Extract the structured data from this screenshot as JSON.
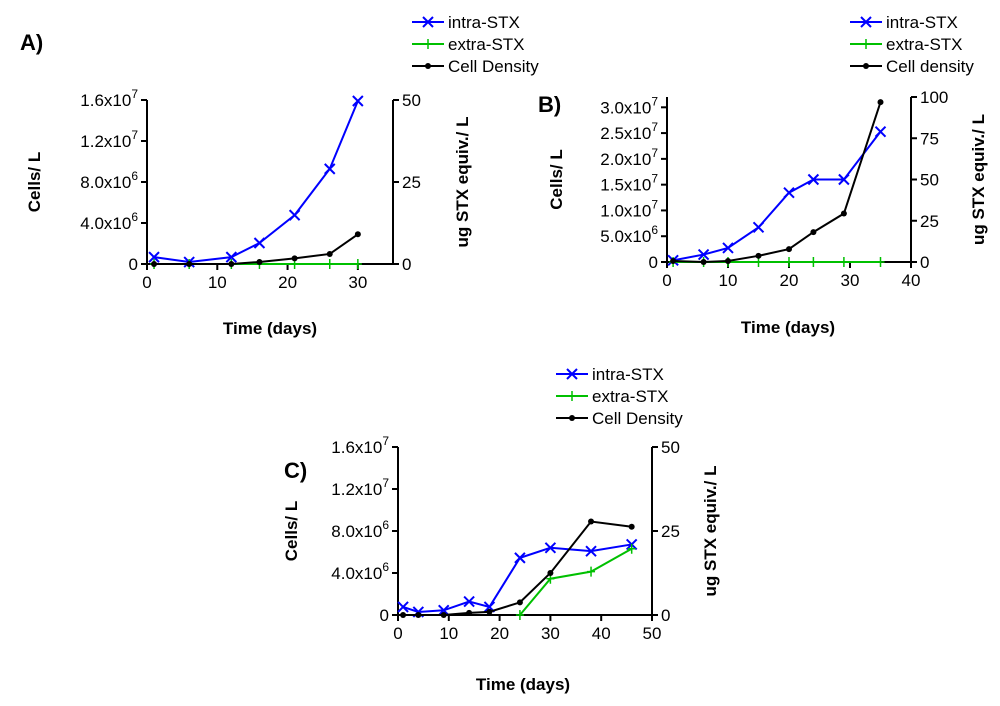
{
  "chart_data": [
    {
      "panel_label": "A)",
      "type": "line",
      "xlabel": "Time (days)",
      "ylabel_left": "Cells/ L",
      "ylabel_right": "ug STX equiv./ L",
      "xlim": [
        0,
        35
      ],
      "xticks": [
        0,
        10,
        20,
        30
      ],
      "ylim_left": [
        0,
        16000000
      ],
      "yticks_left": [
        {
          "v": 0,
          "label": "0"
        },
        {
          "v": 4000000,
          "label": "4.0x10^6"
        },
        {
          "v": 8000000,
          "label": "8.0x10^6"
        },
        {
          "v": 12000000,
          "label": "1.2x10^7"
        },
        {
          "v": 16000000,
          "label": "1.6x10^7"
        }
      ],
      "ylim_right": [
        0,
        50
      ],
      "yticks_right": [
        0,
        25,
        50
      ],
      "legend": [
        "intra-STX",
        "extra-STX",
        "Cell Density"
      ],
      "legend_placement": "top-right",
      "series": [
        {
          "name": "intra-STX",
          "axis": "right",
          "color": "#0000ff",
          "marker": "x",
          "x": [
            1,
            6,
            12,
            16,
            21,
            26,
            30
          ],
          "y": [
            2.1,
            0.6,
            2.1,
            6.4,
            14.9,
            29,
            49.7
          ]
        },
        {
          "name": "extra-STX",
          "axis": "right",
          "color": "#00c000",
          "marker": "+",
          "x": [
            1,
            6,
            12,
            16,
            21,
            26,
            30
          ],
          "y": [
            0,
            0,
            0,
            0,
            0,
            0,
            0
          ]
        },
        {
          "name": "Cell Density",
          "axis": "left",
          "color": "#000000",
          "marker": "dot",
          "x": [
            1,
            6,
            12,
            16,
            21,
            26,
            30
          ],
          "y": [
            0,
            0,
            0,
            200000,
            550000,
            980000,
            2900000
          ]
        }
      ]
    },
    {
      "panel_label": "B)",
      "type": "line",
      "xlabel": "Time (days)",
      "ylabel_left": "Cells/ L",
      "ylabel_right": "ug STX equiv./ L",
      "xlim": [
        0,
        40
      ],
      "xticks": [
        0,
        10,
        20,
        30,
        40
      ],
      "ylim_left": [
        0,
        32000000
      ],
      "yticks_left": [
        {
          "v": 0,
          "label": "0"
        },
        {
          "v": 5000000,
          "label": "5.0x10^6"
        },
        {
          "v": 10000000,
          "label": "1.0x10^7"
        },
        {
          "v": 15000000,
          "label": "1.5x10^7"
        },
        {
          "v": 20000000,
          "label": "2.0x10^7"
        },
        {
          "v": 25000000,
          "label": "2.5x10^7"
        },
        {
          "v": 30000000,
          "label": "3.0x10^7"
        }
      ],
      "ylim_right": [
        0,
        100
      ],
      "yticks_right": [
        0,
        25,
        50,
        75,
        100
      ],
      "legend": [
        "intra-STX",
        "extra-STX",
        "Cell density"
      ],
      "legend_placement": "top-right",
      "series": [
        {
          "name": "intra-STX",
          "axis": "right",
          "color": "#0000ff",
          "marker": "x",
          "x": [
            1,
            6,
            10,
            15,
            20,
            24,
            29,
            35
          ],
          "y": [
            1,
            4.5,
            8.5,
            21,
            42,
            50,
            50,
            79
          ]
        },
        {
          "name": "extra-STX",
          "axis": "right",
          "color": "#00c000",
          "marker": "+",
          "x": [
            1,
            6,
            10,
            15,
            20,
            24,
            29,
            35
          ],
          "y": [
            0,
            0,
            0,
            0,
            0,
            0,
            0,
            0
          ]
        },
        {
          "name": "Cell density",
          "axis": "left",
          "color": "#000000",
          "marker": "dot",
          "x": [
            1,
            6,
            10,
            15,
            20,
            24,
            29,
            35
          ],
          "y": [
            200000,
            0,
            200000,
            1200000,
            2500000,
            5800000,
            9400000,
            31000000
          ]
        }
      ]
    },
    {
      "panel_label": "C)",
      "type": "line",
      "xlabel": "Time (days)",
      "ylabel_left": "Cells/ L",
      "ylabel_right": "ug STX equiv./ L",
      "xlim": [
        0,
        50
      ],
      "xticks": [
        0,
        10,
        20,
        30,
        40,
        50
      ],
      "ylim_left": [
        0,
        16000000
      ],
      "yticks_left": [
        {
          "v": 0,
          "label": "0"
        },
        {
          "v": 4000000,
          "label": "4.0x10^6"
        },
        {
          "v": 8000000,
          "label": "8.0x10^6"
        },
        {
          "v": 12000000,
          "label": "1.2x10^7"
        },
        {
          "v": 16000000,
          "label": "1.6x10^7"
        }
      ],
      "ylim_right": [
        0,
        50
      ],
      "yticks_right": [
        0,
        25,
        50
      ],
      "legend": [
        "intra-STX",
        "extra-STX",
        "Cell Density"
      ],
      "legend_placement": "top-right",
      "series": [
        {
          "name": "intra-STX",
          "axis": "right",
          "color": "#0000ff",
          "marker": "x",
          "x": [
            1,
            4,
            9,
            14,
            18,
            24,
            30,
            38,
            46
          ],
          "y": [
            2.4,
            0.9,
            1.4,
            4,
            2.4,
            17,
            20,
            19,
            21
          ]
        },
        {
          "name": "extra-STX",
          "axis": "right",
          "color": "#00c000",
          "marker": "+",
          "x": [
            24,
            30,
            38,
            46
          ],
          "y": [
            0,
            10.8,
            12.9,
            19.7
          ]
        },
        {
          "name": "Cell Density",
          "axis": "left",
          "color": "#000000",
          "marker": "dot",
          "x": [
            1,
            4,
            9,
            14,
            18,
            24,
            30,
            38,
            46
          ],
          "y": [
            0,
            0,
            0,
            200000,
            300000,
            1200000,
            4000000,
            8900000,
            8400000
          ]
        }
      ]
    }
  ]
}
